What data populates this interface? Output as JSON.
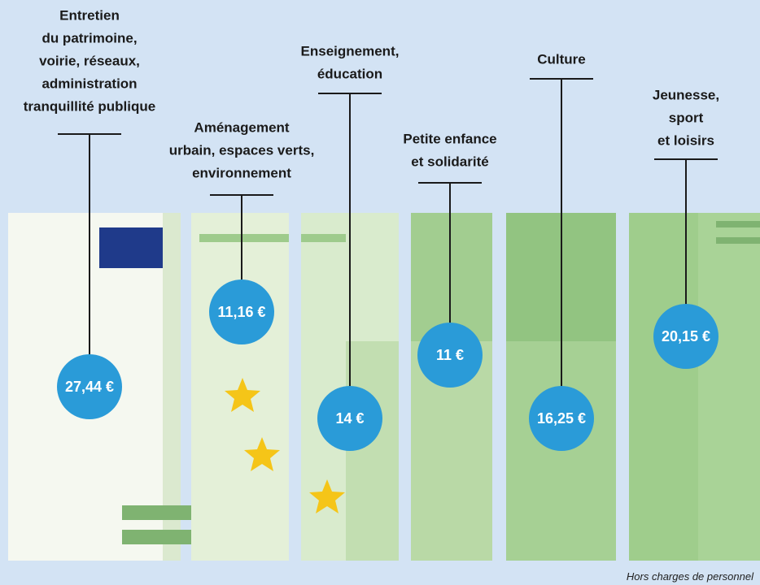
{
  "items": [
    {
      "label": [
        "Entretien",
        "du patrimoine,",
        "voirie, réseaux,",
        "administration",
        "tranquillité publique"
      ],
      "amount": "27,44 €"
    },
    {
      "label": [
        "Aménagement",
        "urbain, espaces verts,",
        "environnement"
      ],
      "amount": "11,16 €"
    },
    {
      "label": [
        "Enseignement,",
        "éducation"
      ],
      "amount": "14 €"
    },
    {
      "label": [
        "Petite enfance",
        "et solidarité"
      ],
      "amount": "11 €"
    },
    {
      "label": [
        "Culture"
      ],
      "amount": "16,25 €"
    },
    {
      "label": [
        "Jeunesse,",
        "sport",
        "et loisirs"
      ],
      "amount": "20,15 €"
    }
  ],
  "footnote": "Hors charges de personnel"
}
